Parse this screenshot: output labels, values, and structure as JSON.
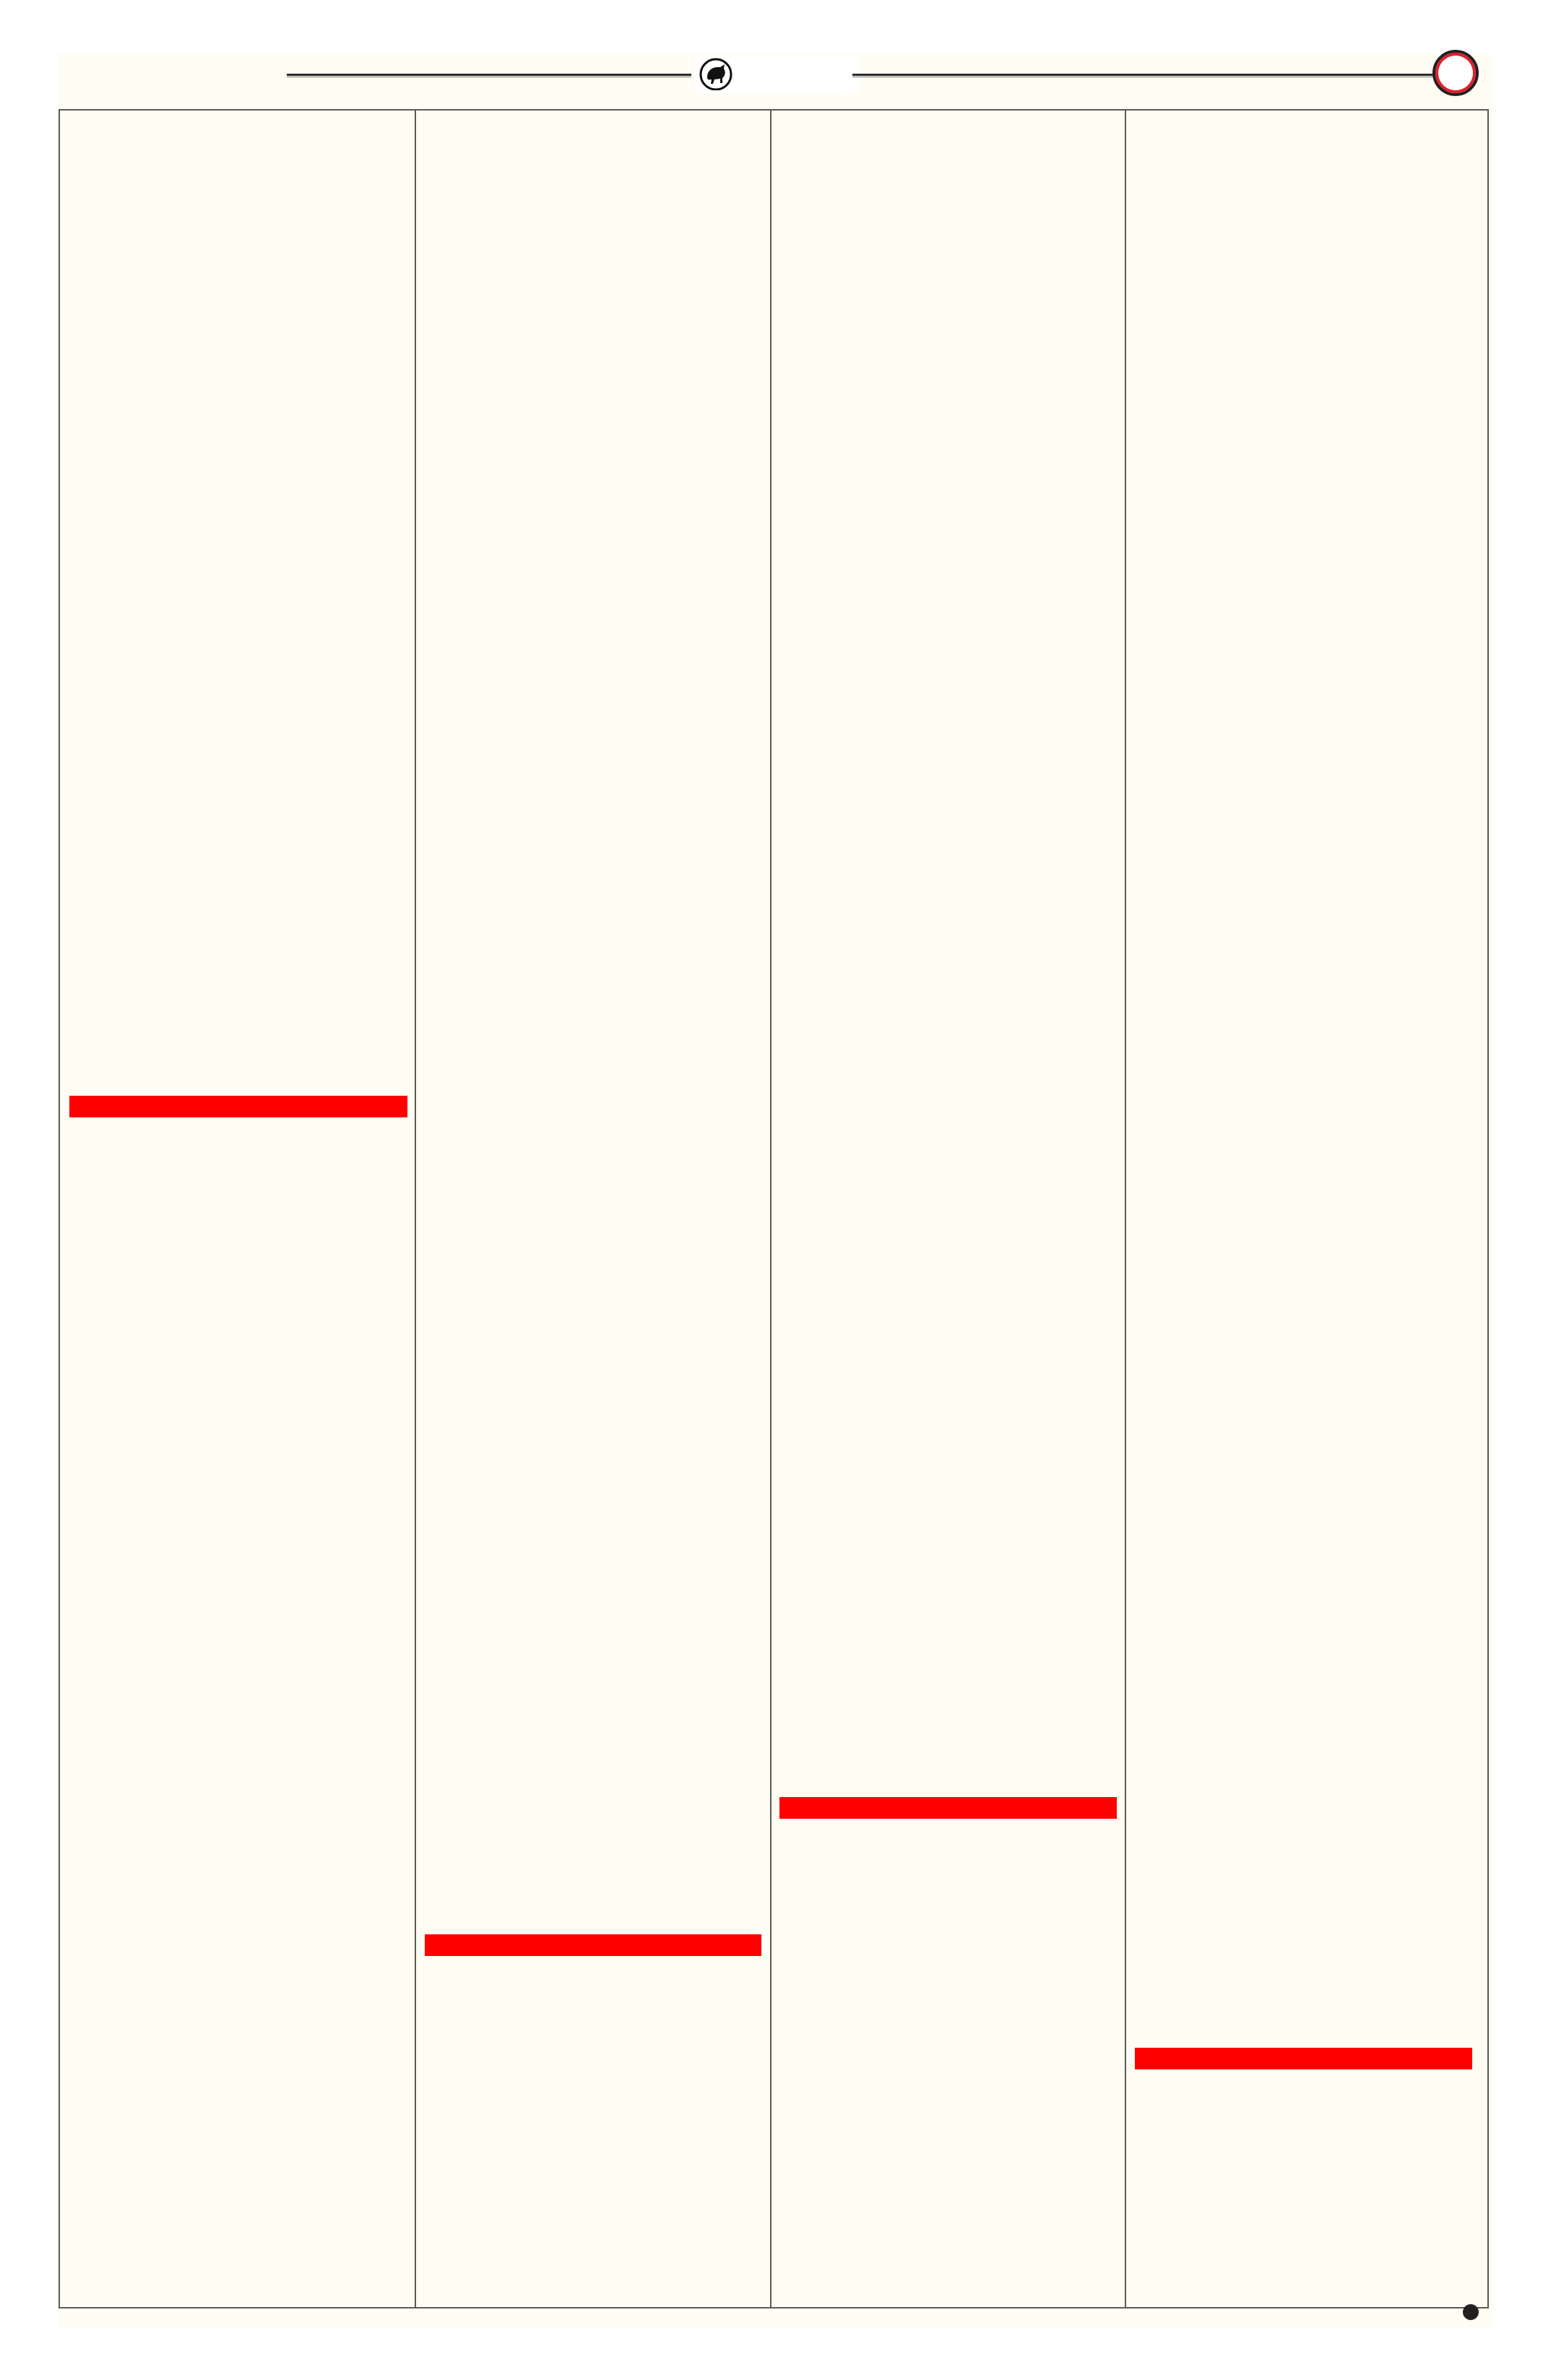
{
  "page": {
    "background_color": "#fffcf3",
    "border_color": "#5a5a55",
    "column_count": 4
  },
  "header": {
    "logo_icon": "bull-in-circle-icon",
    "ring_icon": "red-ring-icon",
    "ring_color": "#e0202c"
  },
  "columns": [
    {
      "redaction_color": "#ff0000"
    },
    {
      "redaction_color": "#ff0000"
    },
    {
      "redaction_color": "#ff0000"
    },
    {
      "redaction_color": "#ff0000"
    }
  ],
  "footer": {
    "marker_icon": "black-dot-icon"
  }
}
